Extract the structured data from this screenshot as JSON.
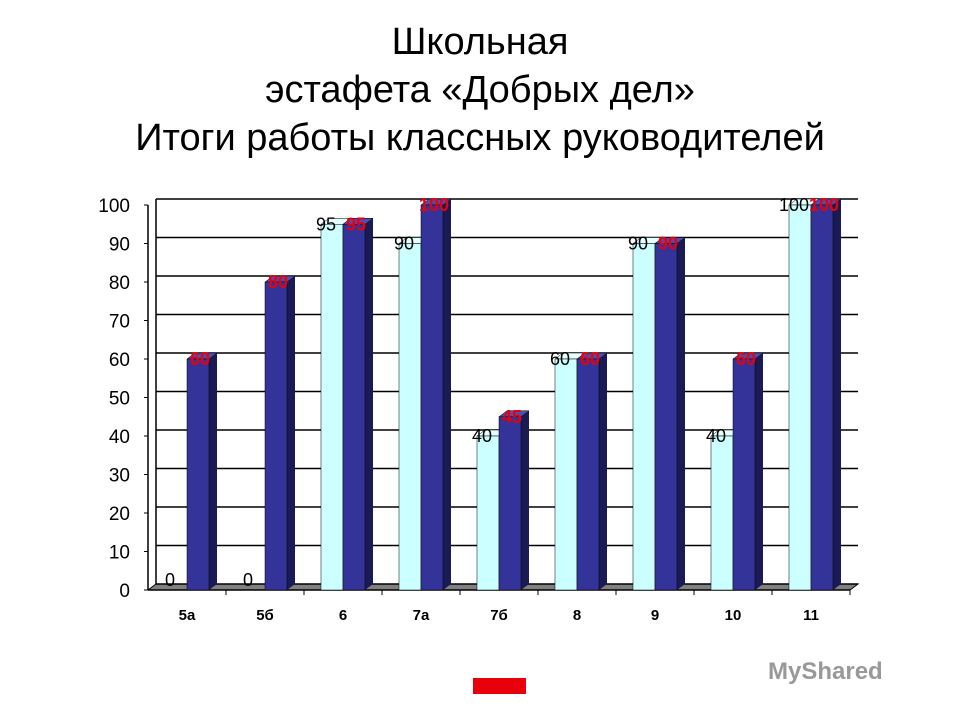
{
  "title": [
    "Школьная",
    "эстафета «Добрых дел»",
    "Итоги работы классных руководителей"
  ],
  "watermark": "MyShared",
  "chart_data": {
    "type": "bar",
    "categories": [
      "5а",
      "5б",
      "6",
      "7а",
      "7б",
      "8",
      "9",
      "10",
      "11"
    ],
    "series": [
      {
        "values": [
          0,
          0,
          95,
          90,
          40,
          60,
          90,
          40,
          100
        ],
        "color": "#ccffff",
        "label_color": "#000000"
      },
      {
        "values": [
          60,
          80,
          95,
          100,
          45,
          60,
          90,
          60,
          100
        ],
        "color": "#333399",
        "label_color": "#e8000b"
      }
    ],
    "ylim": [
      0,
      100
    ],
    "yticks": [
      0,
      10,
      20,
      30,
      40,
      50,
      60,
      70,
      80,
      90,
      100
    ],
    "grid": true
  }
}
